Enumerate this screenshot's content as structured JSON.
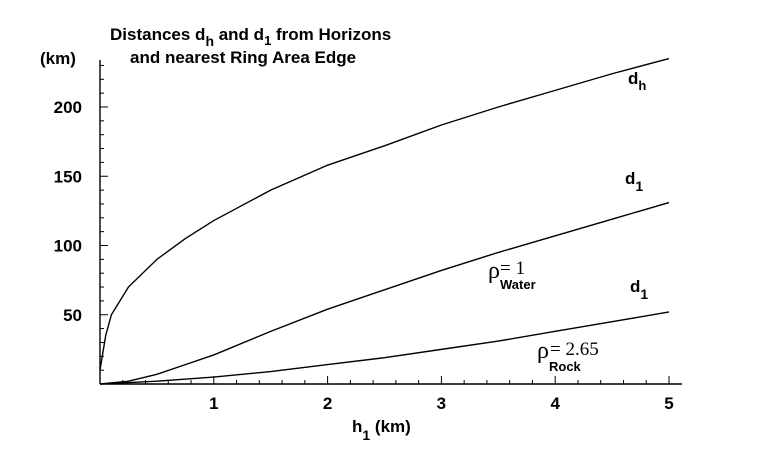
{
  "chart_data": {
    "type": "line",
    "title_line1": {
      "pre": "Distances  d",
      "sub1": "h",
      "mid": "  and  d",
      "sub2": "1",
      "post": "  from Horizons"
    },
    "title_line2": "and nearest  Ring Area Edge",
    "ylabel": "(km)",
    "xlabel": {
      "main": "h",
      "sub": "1",
      "post": " (km)"
    },
    "xlim": [
      0,
      5
    ],
    "ylim": [
      0,
      230
    ],
    "x_ticks": [
      1,
      2,
      3,
      4,
      5
    ],
    "y_ticks": [
      50,
      100,
      150,
      200
    ],
    "series": [
      {
        "name": "d_h",
        "label_main": "d",
        "label_sub": "h",
        "x": [
          0.0,
          0.01,
          0.05,
          0.1,
          0.25,
          0.5,
          0.75,
          1.0,
          1.5,
          2.0,
          2.5,
          3.0,
          3.5,
          4.0,
          4.5,
          5.0
        ],
        "y": [
          10,
          15,
          35,
          50,
          70,
          90,
          105,
          118,
          140,
          158,
          172,
          187,
          200,
          212,
          224,
          235
        ]
      },
      {
        "name": "d_1 (rho_Water = 1)",
        "label_main": "d",
        "label_sub": "1",
        "annotation": {
          "rho": "ρ",
          "sub": "Water",
          "eq": " = 1"
        },
        "x": [
          0.0,
          0.25,
          0.5,
          0.75,
          1.0,
          1.5,
          2.0,
          2.5,
          3.0,
          3.5,
          4.0,
          4.5,
          5.0
        ],
        "y": [
          0,
          2,
          7,
          14,
          21,
          38,
          54,
          68,
          82,
          95,
          107,
          119,
          131
        ]
      },
      {
        "name": "d_1 (rho_Rock = 2.65)",
        "label_main": "d",
        "label_sub": "1",
        "annotation": {
          "rho": "ρ",
          "sub": "Rock",
          "eq": " = 2.65"
        },
        "x": [
          0.0,
          0.5,
          1.0,
          1.5,
          2.0,
          2.5,
          3.0,
          3.5,
          4.0,
          4.5,
          5.0
        ],
        "y": [
          0,
          2,
          5,
          9,
          14,
          19,
          25,
          31,
          38,
          45,
          52
        ]
      }
    ]
  }
}
